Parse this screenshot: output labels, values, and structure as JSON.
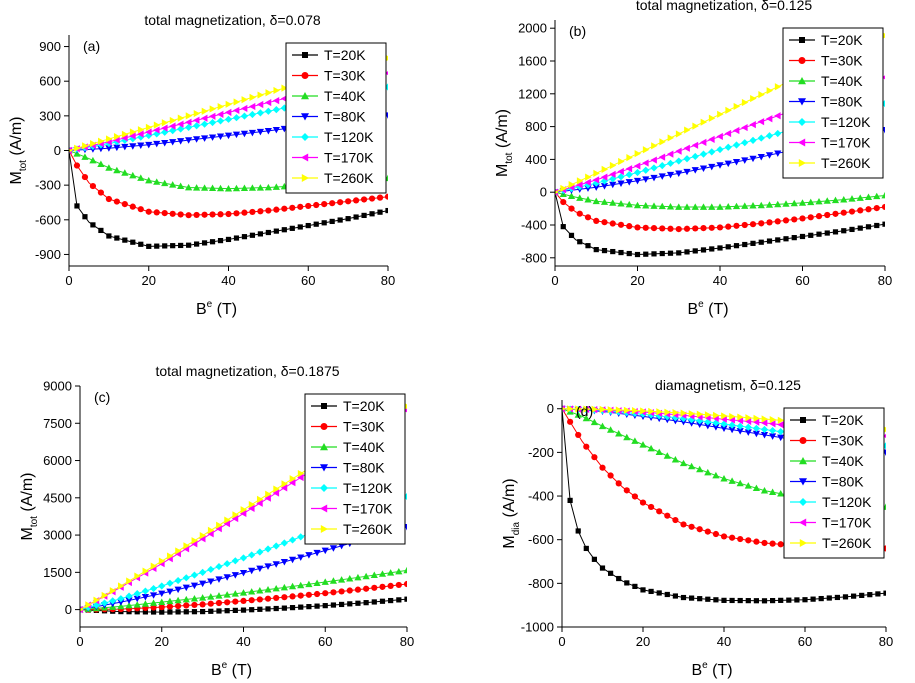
{
  "figure": {
    "legend_labels": [
      "T=20K",
      "T=30K",
      "T=40K",
      "T=80K",
      "T=120K",
      "T=170K",
      "T=260K"
    ],
    "colors": [
      "#000000",
      "#ff0000",
      "#22dd22",
      "#0000ff",
      "#00ffff",
      "#ff00ff",
      "#ffff00"
    ],
    "markers": [
      "square",
      "circle",
      "triangle-up",
      "triangle-down",
      "diamond",
      "triangle-left",
      "triangle-right"
    ]
  },
  "chart_data": [
    {
      "type": "line",
      "panel_label": "(a)",
      "title": "total magnetization, δ=0.078",
      "xlabel": "B",
      "xlabel_sup": "e",
      "xlabel_unit": " (T)",
      "ylabel": "M",
      "ylabel_sub": "tot",
      "ylabel_unit": " (A/m)",
      "xlim": [
        0,
        80
      ],
      "ylim": [
        -1000,
        1000
      ],
      "xticks": [
        0,
        20,
        40,
        60,
        80
      ],
      "yticks": [
        -900,
        -600,
        -300,
        0,
        300,
        600,
        900
      ],
      "legend": "top-right",
      "grid": false,
      "series": [
        {
          "name": "T=20K",
          "x": [
            0,
            2,
            5,
            10,
            20,
            30,
            40,
            50,
            60,
            70,
            80
          ],
          "y": [
            0,
            -480,
            -620,
            -740,
            -830,
            -820,
            -770,
            -710,
            -650,
            -590,
            -520
          ]
        },
        {
          "name": "T=30K",
          "x": [
            0,
            2,
            5,
            10,
            20,
            30,
            40,
            50,
            60,
            70,
            80
          ],
          "y": [
            0,
            -130,
            -280,
            -420,
            -530,
            -560,
            -550,
            -520,
            -480,
            -440,
            -400
          ]
        },
        {
          "name": "T=40K",
          "x": [
            0,
            5,
            10,
            20,
            30,
            40,
            50,
            60,
            70,
            80
          ],
          "y": [
            0,
            -70,
            -150,
            -260,
            -320,
            -330,
            -320,
            -300,
            -270,
            -240
          ]
        },
        {
          "name": "T=80K",
          "x": [
            0,
            10,
            20,
            30,
            40,
            50,
            60,
            70,
            80
          ],
          "y": [
            0,
            20,
            50,
            90,
            130,
            170,
            215,
            260,
            305
          ]
        },
        {
          "name": "T=120K",
          "x": [
            0,
            10,
            20,
            30,
            40,
            50,
            60,
            70,
            80
          ],
          "y": [
            0,
            60,
            130,
            200,
            270,
            340,
            410,
            480,
            550
          ]
        },
        {
          "name": "T=170K",
          "x": [
            0,
            10,
            20,
            30,
            40,
            50,
            60,
            70,
            80
          ],
          "y": [
            0,
            75,
            160,
            245,
            330,
            415,
            500,
            585,
            670
          ]
        },
        {
          "name": "T=260K",
          "x": [
            0,
            10,
            20,
            30,
            40,
            50,
            60,
            70,
            80
          ],
          "y": [
            0,
            100,
            200,
            300,
            400,
            500,
            600,
            700,
            800
          ]
        }
      ]
    },
    {
      "type": "line",
      "panel_label": "(b)",
      "title": "total magnetization, δ=0.125",
      "xlabel": "B",
      "xlabel_sup": "e",
      "xlabel_unit": " (T)",
      "ylabel": "M",
      "ylabel_sub": "tot",
      "ylabel_unit": " (A/m)",
      "xlim": [
        0,
        80
      ],
      "ylim": [
        -900,
        2100
      ],
      "xticks": [
        0,
        20,
        40,
        60,
        80
      ],
      "yticks": [
        -800,
        -400,
        0,
        400,
        800,
        1200,
        1600,
        2000
      ],
      "legend": "top-right",
      "grid": false,
      "series": [
        {
          "name": "T=20K",
          "x": [
            0,
            2,
            5,
            10,
            20,
            30,
            40,
            50,
            60,
            70,
            80
          ],
          "y": [
            0,
            -420,
            -580,
            -700,
            -760,
            -740,
            -680,
            -610,
            -540,
            -470,
            -390
          ]
        },
        {
          "name": "T=30K",
          "x": [
            0,
            2,
            5,
            10,
            20,
            30,
            40,
            50,
            60,
            70,
            80
          ],
          "y": [
            0,
            -120,
            -240,
            -350,
            -430,
            -450,
            -430,
            -380,
            -320,
            -250,
            -180
          ]
        },
        {
          "name": "T=40K",
          "x": [
            0,
            5,
            10,
            20,
            30,
            40,
            50,
            60,
            70,
            80
          ],
          "y": [
            0,
            -60,
            -110,
            -160,
            -180,
            -180,
            -160,
            -130,
            -90,
            -40
          ]
        },
        {
          "name": "T=80K",
          "x": [
            0,
            10,
            20,
            30,
            40,
            50,
            60,
            70,
            80
          ],
          "y": [
            0,
            60,
            140,
            230,
            330,
            430,
            540,
            650,
            760
          ]
        },
        {
          "name": "T=120K",
          "x": [
            0,
            10,
            20,
            30,
            40,
            50,
            60,
            70,
            80
          ],
          "y": [
            0,
            110,
            240,
            380,
            520,
            660,
            800,
            940,
            1080
          ]
        },
        {
          "name": "T=170K",
          "x": [
            0,
            10,
            20,
            30,
            40,
            50,
            60,
            70,
            80
          ],
          "y": [
            0,
            150,
            320,
            500,
            680,
            860,
            1040,
            1220,
            1400
          ]
        },
        {
          "name": "T=260K",
          "x": [
            0,
            10,
            20,
            30,
            40,
            50,
            60,
            70,
            80
          ],
          "y": [
            0,
            230,
            470,
            710,
            950,
            1190,
            1430,
            1670,
            1910
          ]
        }
      ]
    },
    {
      "type": "line",
      "panel_label": "(c)",
      "title": "total magnetization, δ=0.1875",
      "xlabel": "B",
      "xlabel_sup": "e",
      "xlabel_unit": " (T)",
      "ylabel": "M",
      "ylabel_sub": "tot",
      "ylabel_unit": " (A/m)",
      "xlim": [
        0,
        80
      ],
      "ylim": [
        -700,
        9000
      ],
      "xticks": [
        0,
        20,
        40,
        60,
        80
      ],
      "yticks": [
        0,
        1500,
        3000,
        4500,
        6000,
        7500,
        9000
      ],
      "legend": "top-right",
      "grid": false,
      "series": [
        {
          "name": "T=20K",
          "x": [
            0,
            10,
            20,
            30,
            40,
            50,
            60,
            70,
            80
          ],
          "y": [
            0,
            -80,
            -100,
            -80,
            -20,
            60,
            160,
            280,
            420
          ]
        },
        {
          "name": "T=30K",
          "x": [
            0,
            10,
            20,
            30,
            40,
            50,
            60,
            70,
            80
          ],
          "y": [
            0,
            20,
            100,
            210,
            350,
            500,
            660,
            840,
            1030
          ]
        },
        {
          "name": "T=40K",
          "x": [
            0,
            10,
            20,
            30,
            40,
            50,
            60,
            70,
            80
          ],
          "y": [
            0,
            130,
            300,
            480,
            680,
            890,
            1110,
            1340,
            1580
          ]
        },
        {
          "name": "T=80K",
          "x": [
            0,
            10,
            20,
            30,
            40,
            50,
            60,
            70,
            80
          ],
          "y": [
            0,
            300,
            650,
            1050,
            1480,
            1920,
            2380,
            2850,
            3330
          ]
        },
        {
          "name": "T=120K",
          "x": [
            0,
            10,
            20,
            30,
            40,
            50,
            60,
            70,
            80
          ],
          "y": [
            0,
            440,
            950,
            1500,
            2080,
            2680,
            3300,
            3920,
            4550
          ]
        },
        {
          "name": "T=170K",
          "x": [
            0,
            10,
            20,
            30,
            40,
            50,
            60,
            70,
            80
          ],
          "y": [
            0,
            900,
            1850,
            2850,
            3870,
            4900,
            5940,
            6980,
            8020
          ]
        },
        {
          "name": "T=260K",
          "x": [
            0,
            10,
            20,
            30,
            40,
            50,
            60,
            70,
            80
          ],
          "y": [
            0,
            950,
            1950,
            2980,
            4020,
            5060,
            6100,
            7140,
            8180
          ]
        }
      ]
    },
    {
      "type": "line",
      "panel_label": "(d)",
      "title": "diamagnetism, δ=0.125",
      "xlabel": "B",
      "xlabel_sup": "e",
      "xlabel_unit": " (T)",
      "ylabel": "M",
      "ylabel_sub": "dia",
      "ylabel_unit": " (A/m)",
      "xlim": [
        0,
        80
      ],
      "ylim": [
        -1000,
        40
      ],
      "xticks": [
        0,
        20,
        40,
        60,
        80
      ],
      "yticks": [
        -1000,
        -800,
        -600,
        -400,
        -200,
        0
      ],
      "legend": "top-right",
      "grid": false,
      "series": [
        {
          "name": "T=20K",
          "x": [
            0,
            2,
            4,
            6,
            8,
            10,
            15,
            20,
            30,
            40,
            50,
            60,
            70,
            80
          ],
          "y": [
            0,
            -420,
            -560,
            -640,
            -690,
            -730,
            -790,
            -830,
            -865,
            -878,
            -880,
            -875,
            -862,
            -845
          ]
        },
        {
          "name": "T=30K",
          "x": [
            0,
            2,
            5,
            10,
            15,
            20,
            30,
            40,
            50,
            60,
            70,
            80
          ],
          "y": [
            0,
            -60,
            -150,
            -270,
            -360,
            -430,
            -530,
            -585,
            -615,
            -630,
            -638,
            -640
          ]
        },
        {
          "name": "T=40K",
          "x": [
            0,
            5,
            10,
            20,
            30,
            40,
            50,
            60,
            70,
            80
          ],
          "y": [
            0,
            -35,
            -80,
            -165,
            -250,
            -320,
            -375,
            -410,
            -435,
            -450
          ]
        },
        {
          "name": "T=80K",
          "x": [
            0,
            10,
            20,
            30,
            40,
            50,
            60,
            70,
            80
          ],
          "y": [
            0,
            -12,
            -35,
            -60,
            -90,
            -120,
            -150,
            -175,
            -200
          ]
        },
        {
          "name": "T=120K",
          "x": [
            0,
            10,
            20,
            30,
            40,
            50,
            60,
            70,
            80
          ],
          "y": [
            0,
            -8,
            -25,
            -45,
            -70,
            -95,
            -120,
            -145,
            -170
          ]
        },
        {
          "name": "T=170K",
          "x": [
            0,
            10,
            20,
            30,
            40,
            50,
            60,
            70,
            80
          ],
          "y": [
            0,
            -5,
            -15,
            -30,
            -48,
            -65,
            -85,
            -105,
            -125
          ]
        },
        {
          "name": "T=260K",
          "x": [
            0,
            10,
            20,
            30,
            40,
            50,
            60,
            70,
            80
          ],
          "y": [
            0,
            -3,
            -10,
            -20,
            -33,
            -47,
            -62,
            -78,
            -95
          ]
        }
      ]
    }
  ]
}
